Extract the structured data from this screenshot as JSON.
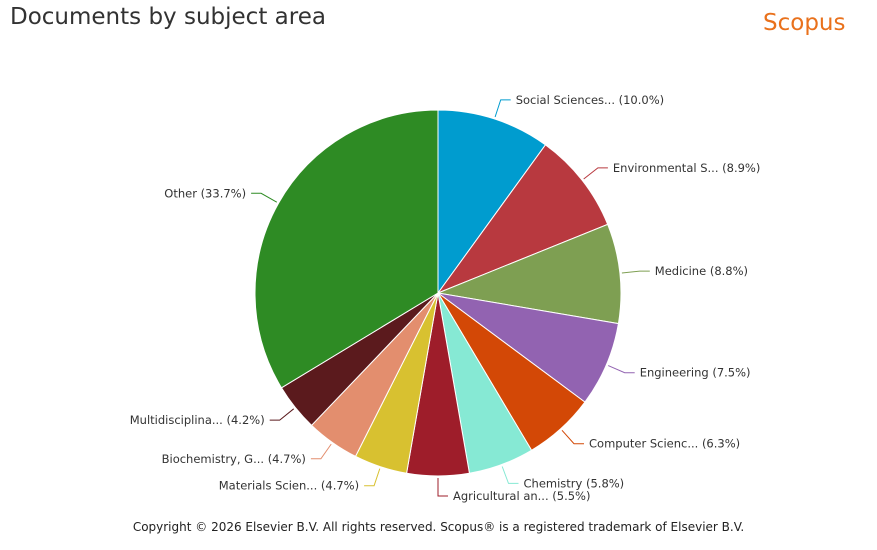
{
  "header": {
    "title": "Documents by subject area",
    "brand": "Scopus"
  },
  "footer": {
    "copyright": "Copyright © 2026 Elsevier B.V. All rights reserved. Scopus® is a registered trademark of Elsevier B.V."
  },
  "chart_data": {
    "type": "pie",
    "title": "Documents by subject area",
    "slices": [
      {
        "label": "Social Sciences... (10.0%)",
        "value": 10.0,
        "color": "#009ccf"
      },
      {
        "label": "Environmental S... (8.9%)",
        "value": 8.9,
        "color": "#b8393f"
      },
      {
        "label": "Medicine (8.8%)",
        "value": 8.8,
        "color": "#7e9f52"
      },
      {
        "label": "Engineering (7.5%)",
        "value": 7.5,
        "color": "#9263b1"
      },
      {
        "label": "Computer Scienc... (6.3%)",
        "value": 6.3,
        "color": "#d34806"
      },
      {
        "label": "Chemistry (5.8%)",
        "value": 5.8,
        "color": "#86e9d4"
      },
      {
        "label": "Agricultural an... (5.5%)",
        "value": 5.5,
        "color": "#9e1d2a"
      },
      {
        "label": "Materials Scien... (4.7%)",
        "value": 4.7,
        "color": "#d8c130"
      },
      {
        "label": "Biochemistry, G... (4.7%)",
        "value": 4.7,
        "color": "#e38e6e"
      },
      {
        "label": "Multidisciplina... (4.2%)",
        "value": 4.2,
        "color": "#5b1a1d"
      },
      {
        "label": "Other (33.7%)",
        "value": 33.7,
        "color": "#2e8b24"
      }
    ]
  }
}
